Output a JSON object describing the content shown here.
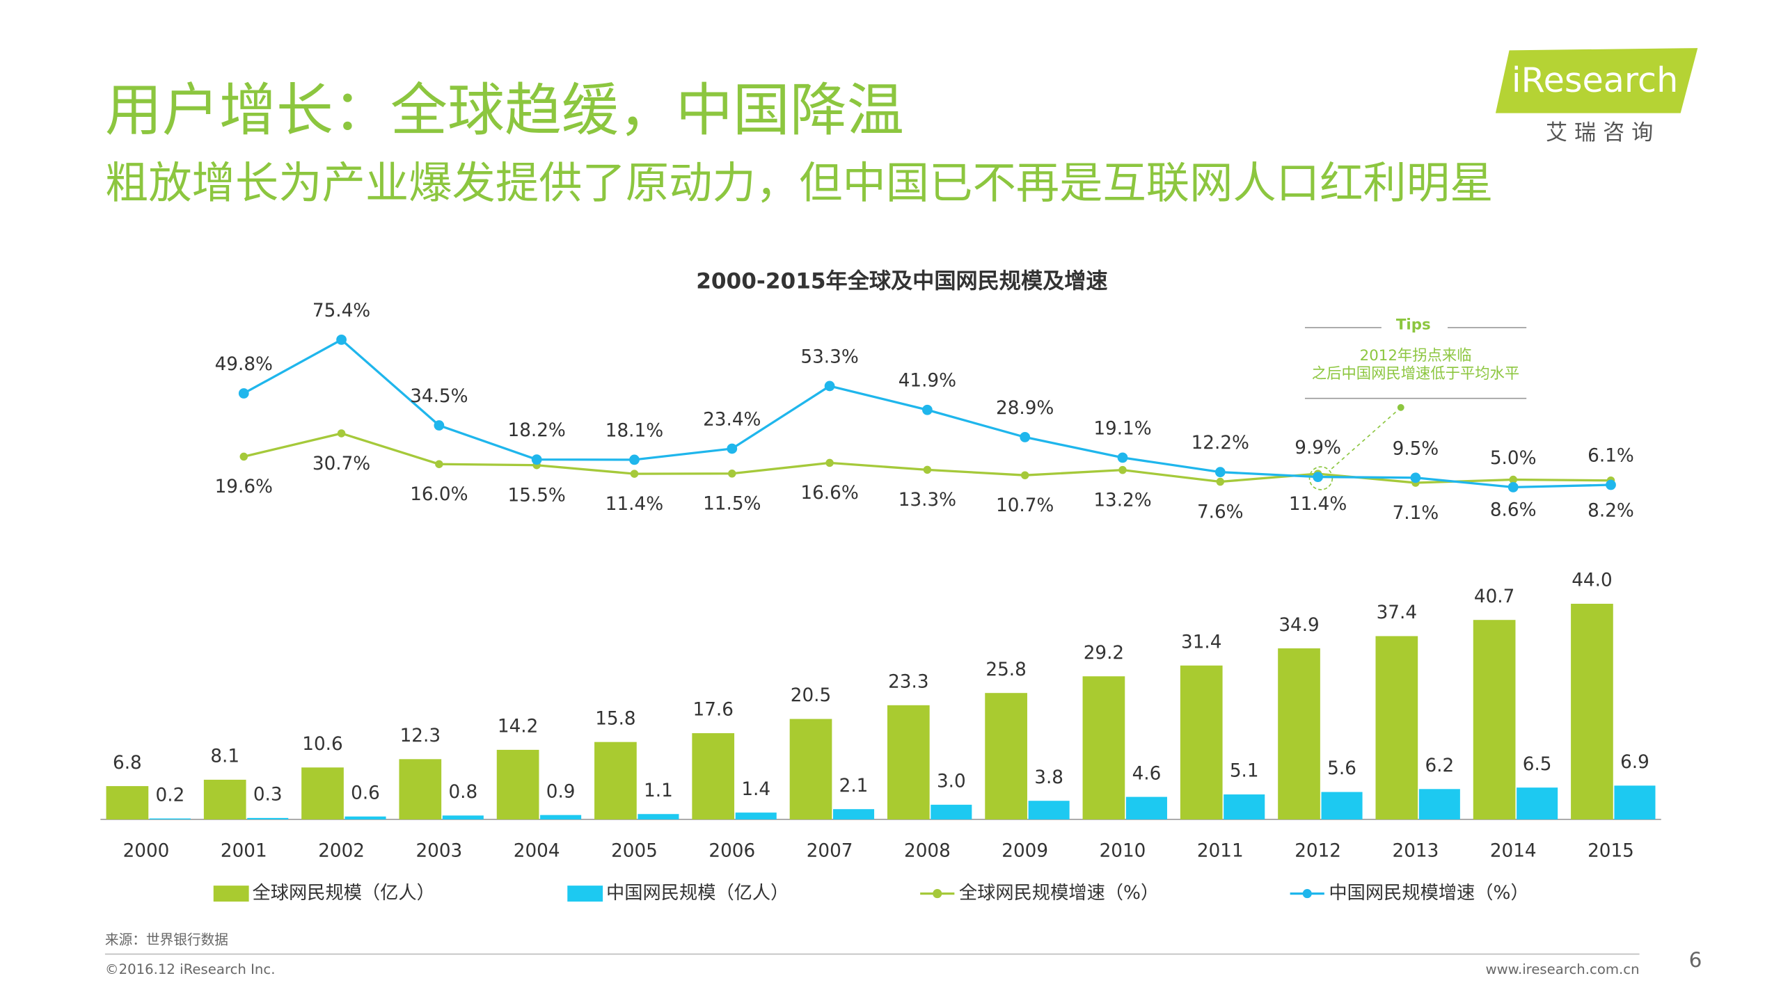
{
  "header": {
    "title": "用户增长：全球趋缓，中国降温",
    "subtitle": "粗放增长为产业爆发提供了原动力，但中国已不再是互联网人口红利明星"
  },
  "logo": {
    "text": "iResearch",
    "subtext": "艾 瑞 咨 询"
  },
  "chart_data": {
    "type": "bar",
    "title": "2000-2015年全球及中国网民规模及增速",
    "categories": [
      "2000",
      "2001",
      "2002",
      "2003",
      "2004",
      "2005",
      "2006",
      "2007",
      "2008",
      "2009",
      "2010",
      "2011",
      "2012",
      "2013",
      "2014",
      "2015"
    ],
    "ylim": [
      0,
      44
    ],
    "y2lim": [
      0,
      85
    ],
    "series": [
      {
        "name": "全球网民规模（亿人）",
        "type": "bar",
        "color": "#a9cb30",
        "values": [
          6.8,
          8.1,
          10.6,
          12.3,
          14.2,
          15.8,
          17.6,
          20.5,
          23.3,
          25.8,
          29.2,
          31.4,
          34.9,
          37.4,
          40.7,
          44.0
        ],
        "value_labels": [
          "6.8",
          "8.1",
          "10.6",
          "12.3",
          "14.2",
          "15.8",
          "17.6",
          "20.5",
          "23.3",
          "25.8",
          "29.2",
          "31.4",
          "34.9",
          "37.4",
          "40.7",
          "44.0"
        ]
      },
      {
        "name": "中国网民规模（亿人）",
        "type": "bar",
        "color": "#1dc9f1",
        "values": [
          0.2,
          0.3,
          0.6,
          0.8,
          0.9,
          1.1,
          1.4,
          2.1,
          3.0,
          3.8,
          4.6,
          5.1,
          5.6,
          6.2,
          6.5,
          6.9
        ],
        "value_labels": [
          "0.2",
          "0.3",
          "0.6",
          "0.8",
          "0.9",
          "1.1",
          "1.4",
          "2.1",
          "3.0",
          "3.8",
          "4.6",
          "5.1",
          "5.6",
          "6.2",
          "6.5",
          "6.9"
        ]
      },
      {
        "name": "全球网民规模增速（%）",
        "type": "line",
        "axis": "y2",
        "color": "#a5c93a",
        "values": [
          null,
          19.6,
          30.7,
          16.0,
          15.5,
          11.4,
          11.5,
          16.6,
          13.3,
          10.7,
          13.2,
          7.6,
          11.4,
          7.1,
          8.6,
          8.2
        ],
        "value_labels": [
          null,
          "19.6%",
          "30.7%",
          "16.0%",
          "15.5%",
          "11.4%",
          "11.5%",
          "16.6%",
          "13.3%",
          "10.7%",
          "13.2%",
          "7.6%",
          "11.4%",
          "7.1%",
          "8.6%",
          "8.2%"
        ]
      },
      {
        "name": "中国网民规模增速（%）",
        "type": "line",
        "axis": "y2",
        "color": "#1fb6ec",
        "values": [
          null,
          49.8,
          75.4,
          34.5,
          18.2,
          18.1,
          23.4,
          53.3,
          41.9,
          28.9,
          19.1,
          12.2,
          9.9,
          9.5,
          5.0,
          6.1
        ],
        "value_labels": [
          null,
          "49.8%",
          "75.4%",
          "34.5%",
          "18.2%",
          "18.1%",
          "23.4%",
          "53.3%",
          "41.9%",
          "28.9%",
          "19.1%",
          "12.2%",
          "9.9%",
          "9.5%",
          "5.0%",
          "6.1%"
        ]
      }
    ],
    "annotations": [
      "Tips",
      "2012年拐点来临",
      "之后中国网民增速低于平均水平"
    ]
  },
  "footer": {
    "source": "来源：世界银行数据",
    "copyright": "©2016.12 iResearch Inc.",
    "website": "www.iresearch.com.cn",
    "page": "6"
  }
}
